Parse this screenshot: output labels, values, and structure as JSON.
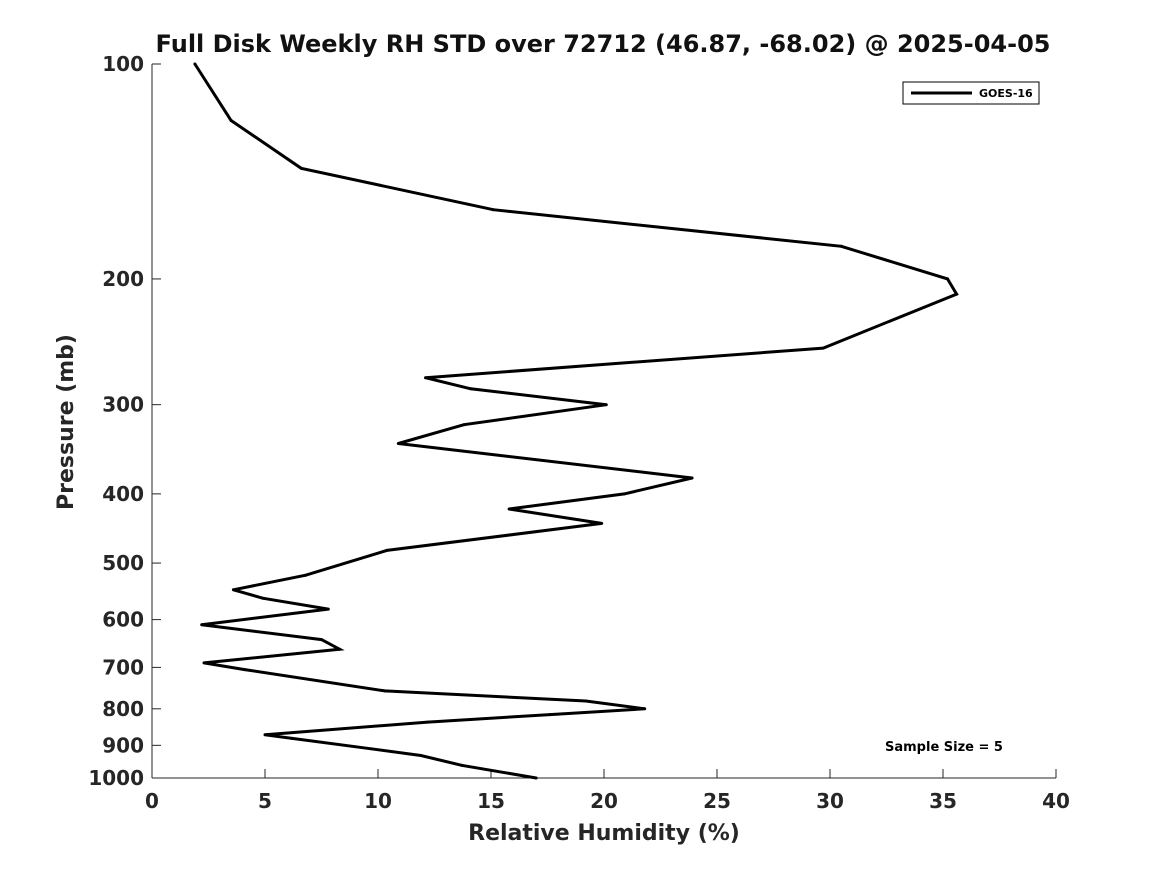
{
  "chart_data": {
    "type": "line",
    "title": "Full Disk Weekly RH STD over 72712 (46.87, -68.02) @ 2025-04-05",
    "xlabel": "Relative Humidity (%)",
    "ylabel": "Pressure (mb)",
    "xlim": [
      0,
      40
    ],
    "ylim": [
      1000,
      100
    ],
    "yscale": "log",
    "x_ticks": [
      0,
      5,
      10,
      15,
      20,
      25,
      30,
      35,
      40
    ],
    "y_ticks": [
      100,
      200,
      300,
      400,
      500,
      600,
      700,
      800,
      900,
      1000
    ],
    "grid": false,
    "legend_position": "top-right",
    "annotation": "Sample Size = 5",
    "series": [
      {
        "name": "GOES-16",
        "color": "#000000",
        "x": [
          1.9,
          3.5,
          6.6,
          15.1,
          30.5,
          35.2,
          35.6,
          29.7,
          12.1,
          14.1,
          20.1,
          13.8,
          10.9,
          23.9,
          20.9,
          15.8,
          19.9,
          10.4,
          6.8,
          3.6,
          4.9,
          7.8,
          2.2,
          7.5,
          8.3,
          2.3,
          4.1,
          10.3,
          19.2,
          21.8,
          17.6,
          12.2,
          5.0,
          6.2,
          9.7,
          11.9,
          13.7,
          17.0
        ],
        "y": [
          100,
          120,
          140,
          160,
          180,
          200,
          210,
          250,
          275,
          285,
          300,
          320,
          340,
          380,
          400,
          420,
          440,
          480,
          520,
          545,
          560,
          580,
          610,
          640,
          660,
          690,
          705,
          755,
          780,
          800,
          815,
          835,
          870,
          880,
          910,
          930,
          960,
          1000
        ]
      }
    ]
  }
}
